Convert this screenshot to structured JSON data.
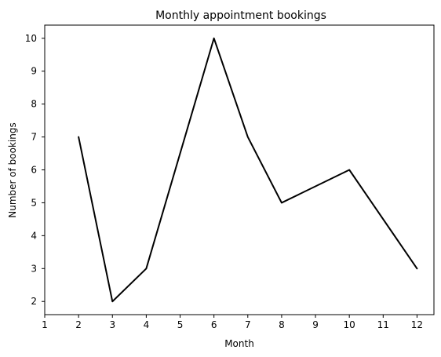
{
  "chart_data": {
    "type": "line",
    "title": "Monthly appointment bookings",
    "xlabel": "Month",
    "ylabel": "Number of bookings",
    "x": [
      2,
      3,
      4,
      6,
      7,
      8,
      10,
      12
    ],
    "series": [
      {
        "values": [
          7,
          2,
          3,
          10,
          7,
          5,
          6,
          3
        ],
        "color": "#000000"
      }
    ],
    "xlim": [
      1,
      12.5
    ],
    "ylim": [
      1.6,
      10.4
    ],
    "xticks": [
      1,
      2,
      3,
      4,
      5,
      6,
      7,
      8,
      9,
      10,
      11,
      12
    ],
    "yticks": [
      2,
      3,
      4,
      5,
      6,
      7,
      8,
      9,
      10
    ],
    "grid": false,
    "legend": "none"
  }
}
